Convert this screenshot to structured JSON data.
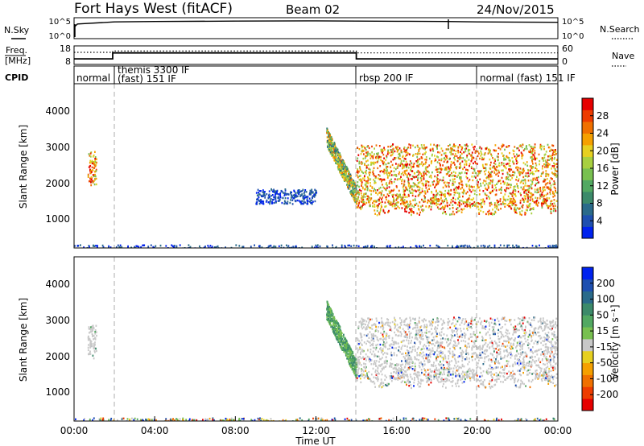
{
  "header": {
    "site": "Fort Hays West (fitACF)",
    "beam": "Beam 02",
    "date": "24/Nov/2015"
  },
  "chart_data": [
    {
      "type": "line",
      "panel": "noise",
      "left_label": "N.Sky",
      "right_label": "N.Search",
      "left_ticks": [
        "10^5",
        "10^0"
      ],
      "right_ticks": [
        "10^5",
        "10^0"
      ],
      "legend_style": "dotted",
      "series": [
        {
          "name": "N.Sky",
          "style": "solid",
          "x": [
            "00:00",
            "00:10",
            "02:00",
            "04:00",
            "08:00",
            "12:00",
            "16:00",
            "18:30",
            "20:00",
            "24:00"
          ],
          "y_level": [
            0.55,
            0.7,
            0.8,
            0.82,
            0.84,
            0.85,
            0.83,
            0.82,
            0.8,
            0.78
          ]
        }
      ],
      "spikes": [
        "00:10",
        "18:35"
      ]
    },
    {
      "type": "line",
      "panel": "frequency",
      "left_label_top": "Freq.",
      "left_label_bottom": "[MHz]",
      "right_label": "Nave",
      "left_ticks": [
        "18",
        "8"
      ],
      "right_ticks": [
        "60",
        "0"
      ],
      "series": [
        {
          "name": "Freq.",
          "style": "solid",
          "x": [
            "00:00",
            "01:55",
            "01:55",
            "14:00",
            "14:00",
            "24:00"
          ],
          "y_level": [
            0.3,
            0.3,
            0.62,
            0.62,
            0.3,
            0.3
          ]
        },
        {
          "name": "Nave",
          "style": "dotted",
          "x": [
            "00:00",
            "01:55",
            "01:55",
            "14:00",
            "14:00",
            "24:00"
          ],
          "y_level": [
            0.65,
            0.65,
            0.72,
            0.72,
            0.62,
            0.62
          ]
        }
      ]
    },
    {
      "type": "table",
      "panel": "cpid",
      "label": "CPID",
      "modes": [
        {
          "start": "00:00",
          "name": "normal"
        },
        {
          "start": "01:55",
          "name": "themis 3300 IF",
          "name2": "(fast) 151 IF"
        },
        {
          "start": "14:00",
          "name": "rbsp 200 IF"
        },
        {
          "start": "20:00",
          "name": "normal (fast) 151 IF"
        }
      ]
    },
    {
      "type": "heatmap",
      "panel": "power",
      "ylabel": "Slant Range [km]",
      "yticks": [
        "4000",
        "3000",
        "2000",
        "1000"
      ],
      "ylim": [
        200,
        4600
      ],
      "xlim": [
        "00:00",
        "24:00"
      ],
      "colorbar": {
        "label": "Power [dB]",
        "ticks": [
          "28",
          "24",
          "20",
          "16",
          "12",
          "8",
          "4"
        ],
        "range": [
          0,
          30
        ],
        "colors": [
          "#0022ee",
          "#1e4fb0",
          "#2a6a8a",
          "#3c8a6a",
          "#52a862",
          "#78c050",
          "#a8d040",
          "#e6d020",
          "#f5a000",
          "#f07000",
          "#ee3c00",
          "#e60000"
        ]
      },
      "features": [
        {
          "name": "early echo",
          "time": [
            "00:40",
            "01:05"
          ],
          "range_km": [
            1900,
            2800
          ],
          "level": "high"
        },
        {
          "name": "scattered echo",
          "time": [
            "09:00",
            "12:00"
          ],
          "range_km": [
            1400,
            1800
          ],
          "level": "low"
        },
        {
          "name": "descending echo",
          "time": [
            "12:30",
            "14:00"
          ],
          "range_km": [
            1500,
            3200
          ],
          "level": "medium"
        },
        {
          "name": "main echo band",
          "time": [
            "14:00",
            "24:00"
          ],
          "range_km": [
            1100,
            3000
          ],
          "level": "high"
        },
        {
          "name": "near-range clutter",
          "time": [
            "00:00",
            "24:00"
          ],
          "range_km": [
            200,
            300
          ],
          "level": "low"
        }
      ]
    },
    {
      "type": "heatmap",
      "panel": "velocity",
      "ylabel": "Slant Range [km]",
      "yticks": [
        "4000",
        "3000",
        "2000",
        "1000"
      ],
      "ylim": [
        200,
        4600
      ],
      "xlim": [
        "00:00",
        "24:00"
      ],
      "xticks": [
        "00:00",
        "04:00",
        "08:00",
        "12:00",
        "16:00",
        "20:00",
        "00:00"
      ],
      "xlabel": "Time UT",
      "colorbar": {
        "label": "Velocity [m s⁻¹]",
        "ticks": [
          "200",
          "100",
          "50",
          "15",
          "-15",
          "-50",
          "-100",
          "-200"
        ],
        "range": [
          -250,
          250
        ],
        "colors": [
          "#e60000",
          "#ee3c00",
          "#f07000",
          "#f5a000",
          "#e6d020",
          "#c8c8c8",
          "#78c050",
          "#52a862",
          "#3c8a6a",
          "#2a6a8a",
          "#1e4fb0",
          "#0022ee"
        ]
      },
      "features": [
        {
          "name": "early echo",
          "time": [
            "00:40",
            "01:05"
          ],
          "range_km": [
            1900,
            2800
          ],
          "velocity": "near zero"
        },
        {
          "name": "descending echo",
          "time": [
            "12:30",
            "14:00"
          ],
          "range_km": [
            1500,
            3200
          ],
          "velocity": "positive"
        },
        {
          "name": "main echo band",
          "time": [
            "14:00",
            "24:00"
          ],
          "range_km": [
            1100,
            3000
          ],
          "velocity": "near zero"
        },
        {
          "name": "near-range clutter",
          "time": [
            "00:00",
            "24:00"
          ],
          "range_km": [
            200,
            300
          ],
          "velocity": "mixed"
        }
      ]
    }
  ]
}
